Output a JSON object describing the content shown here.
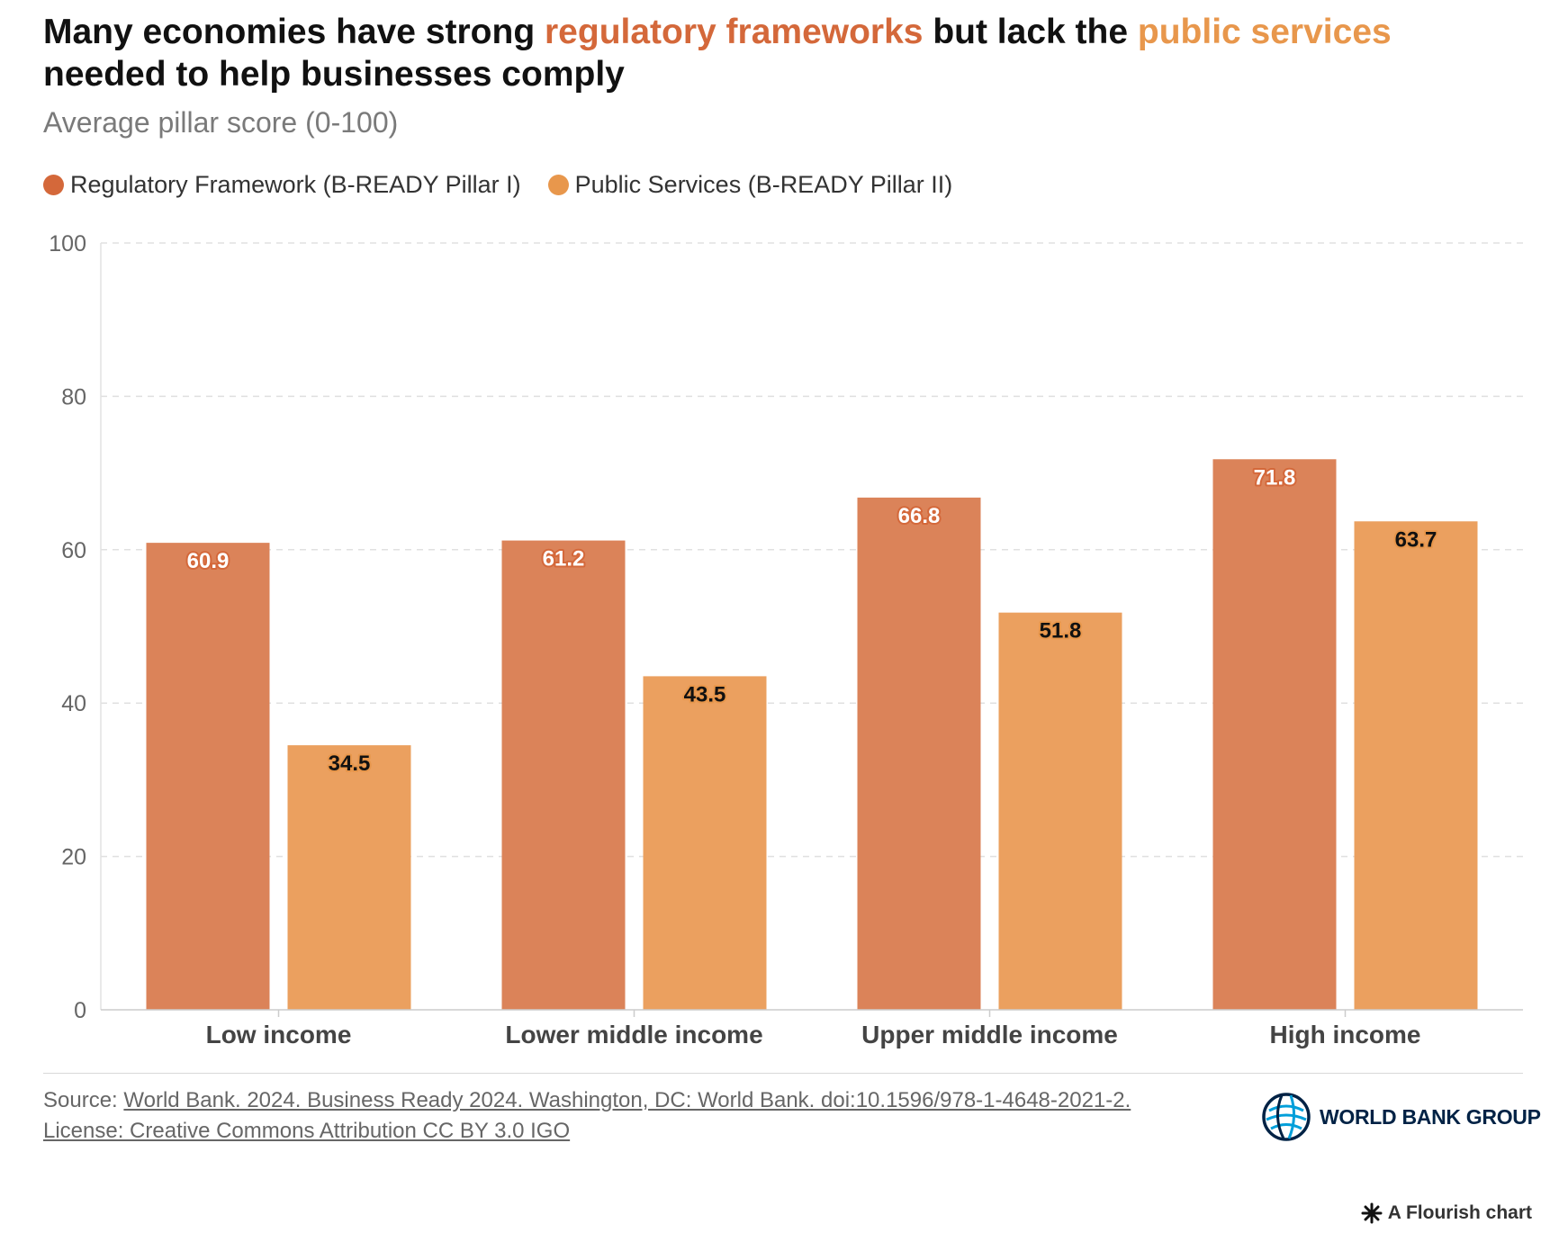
{
  "title": {
    "part1": "Many economies have strong ",
    "highlight1": "regulatory frameworks",
    "part2": " but lack the ",
    "highlight2": "public services",
    "part3": " needed to help businesses comply"
  },
  "subtitle": "Average pillar score (0-100)",
  "colors": {
    "regulatory": "#db8359",
    "public": "#eba05f",
    "regulatory_legend": "#d4683a",
    "public_legend": "#e8974c"
  },
  "chart_data": {
    "type": "bar",
    "categories": [
      "Low income",
      "Lower middle income",
      "Upper middle income",
      "High income"
    ],
    "series": [
      {
        "name": "Regulatory Framework (B-READY Pillar I)",
        "values": [
          60.9,
          61.2,
          66.8,
          71.8
        ]
      },
      {
        "name": "Public Services (B-READY Pillar II)",
        "values": [
          34.5,
          43.5,
          51.8,
          63.7
        ]
      }
    ],
    "ylim": [
      0,
      100
    ],
    "yticks": [
      0,
      20,
      40,
      60,
      80,
      100
    ],
    "grid": true,
    "legend_position": "top-left",
    "data_labels": true
  },
  "source": {
    "label": "Source: ",
    "text": "World Bank. 2024. Business Ready 2024. Washington, DC: World Bank. doi:10.1596/978-1-4648-2021-2.",
    "license": "License: Creative Commons Attribution CC BY 3.0 IGO"
  },
  "logo": {
    "name": "WORLD BANK GROUP",
    "icon": "globe-icon"
  },
  "credit": "A Flourish chart"
}
